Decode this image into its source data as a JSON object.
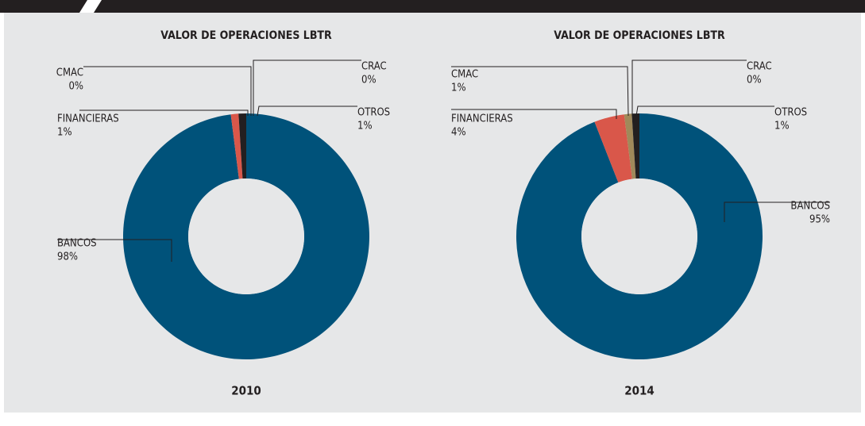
{
  "chart_data": [
    {
      "type": "donut",
      "title": "VALOR DE OPERACIONES LBTR",
      "subtitle": "2010",
      "categories": [
        "BANCOS",
        "FINANCIERAS",
        "CMAC",
        "CRAC",
        "OTROS"
      ],
      "values": [
        98,
        1,
        0,
        0,
        1
      ],
      "value_labels": [
        "98%",
        "1%",
        "0%",
        "0%",
        "1%"
      ],
      "colors": [
        "#00527a",
        "#d9574a",
        "#a0895a",
        "#c8b48a",
        "#231f20"
      ]
    },
    {
      "type": "donut",
      "title": "VALOR DE OPERACIONES LBTR",
      "subtitle": "2014",
      "categories": [
        "BANCOS",
        "FINANCIERAS",
        "CMAC",
        "CRAC",
        "OTROS"
      ],
      "values": [
        95,
        4,
        1,
        0,
        1
      ],
      "value_labels": [
        "95%",
        "4%",
        "1%",
        "0%",
        "1%"
      ],
      "colors": [
        "#00527a",
        "#d9574a",
        "#a0895a",
        "#c8b48a",
        "#231f20"
      ]
    }
  ]
}
